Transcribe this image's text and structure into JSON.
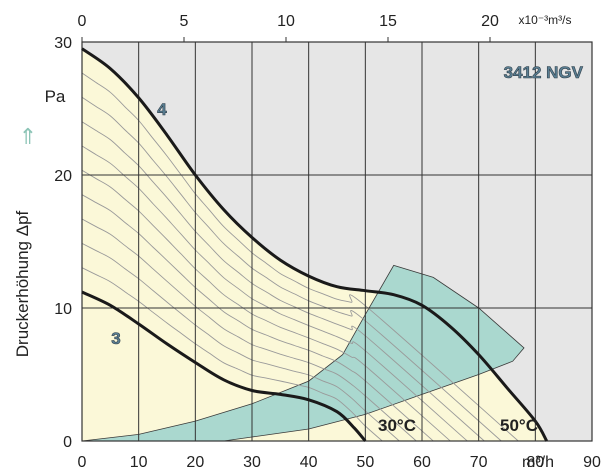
{
  "chart_data": {
    "type": "line",
    "title": "3412 NGV",
    "ylabel": "Druckerhöhung  Δpf",
    "yunit": "Pa",
    "xunit_bottom": "m³/h",
    "xunit_top": "x10⁻³m³/s",
    "xlim": [
      0,
      90
    ],
    "ylim": [
      0,
      30
    ],
    "x_ticks": [
      "0",
      "10",
      "20",
      "30",
      "40",
      "50",
      "60",
      "70",
      "80",
      "90"
    ],
    "y_ticks": [
      "0",
      "10",
      "20",
      "30"
    ],
    "top_ticks": [
      "0",
      "5",
      "10",
      "15",
      "20"
    ],
    "grid": true,
    "series": [
      {
        "name": "4",
        "x": [
          0,
          5,
          10,
          15,
          20,
          25,
          30,
          35,
          40,
          45,
          50,
          55,
          60,
          65,
          70,
          75,
          80,
          82
        ],
        "y": [
          29.5,
          28.0,
          25.8,
          23.0,
          20.0,
          17.4,
          15.3,
          13.6,
          12.4,
          11.6,
          11.3,
          11.0,
          10.2,
          8.6,
          6.5,
          4.0,
          1.5,
          0
        ]
      },
      {
        "name": "3",
        "x": [
          0,
          5,
          10,
          15,
          20,
          25,
          30,
          35,
          40,
          45,
          48,
          50
        ],
        "y": [
          11.2,
          10.2,
          8.8,
          7.3,
          5.9,
          4.6,
          3.8,
          3.5,
          3.1,
          2.2,
          1.0,
          0
        ]
      }
    ],
    "annotations": {
      "curve_4": "4",
      "curve_3": "3",
      "temp_low": "30°C",
      "temp_high": "50°C",
      "arrow": "⇑"
    }
  },
  "colors": {
    "plot_bg": "#e6e6e6",
    "operating_area": "#fbf8d8",
    "temperature_zone": "#aad8cf",
    "curve": "#1a1a1a",
    "grid": "#333333",
    "arrow": "#8cc4b6"
  }
}
